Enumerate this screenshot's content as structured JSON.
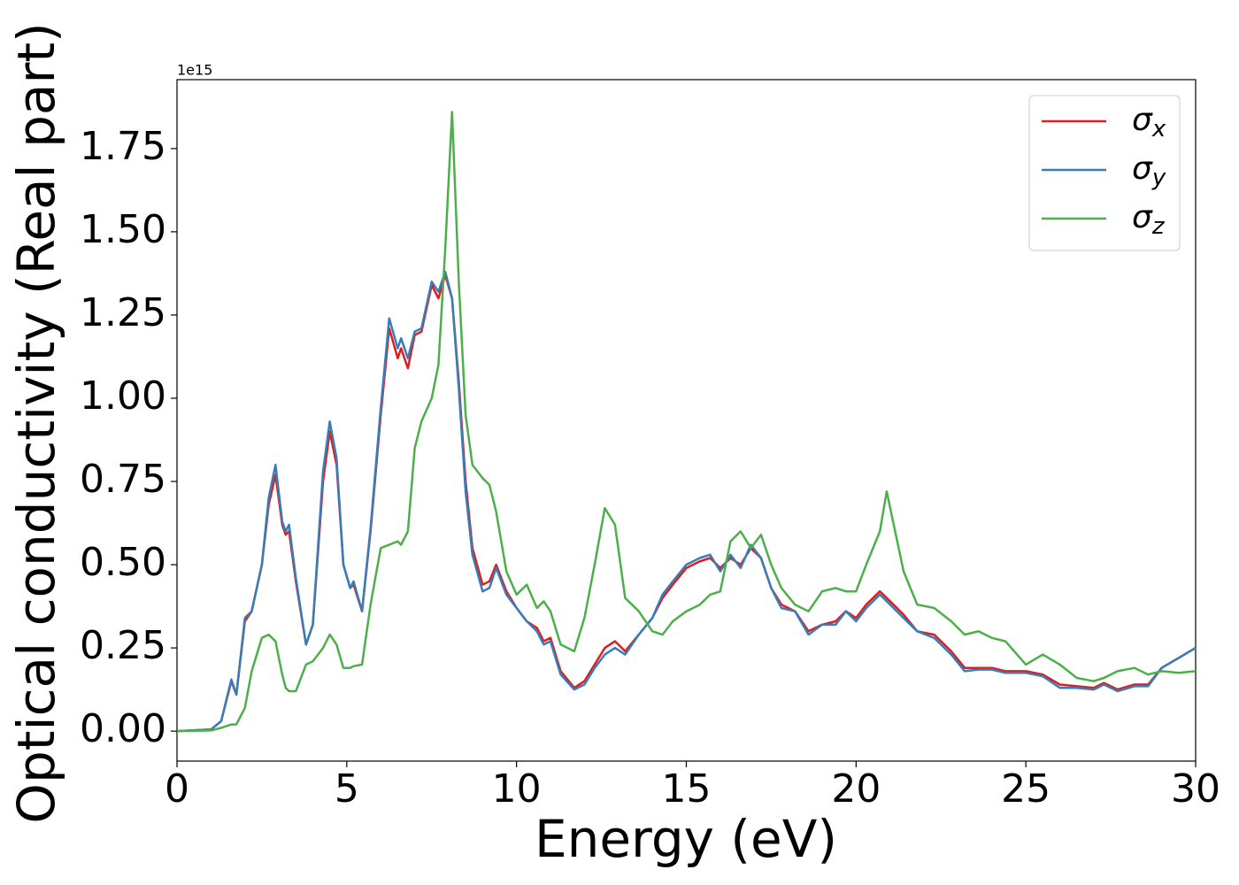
{
  "chart_data": {
    "type": "line",
    "xlabel": "Energy (eV)",
    "ylabel": "Optical conductivity (Real part)",
    "y_offset_label": "1e15",
    "x": [
      0,
      1,
      1.3,
      1.6,
      1.75,
      2,
      2.2,
      2.5,
      2.7,
      2.9,
      3.1,
      3.2,
      3.3,
      3.5,
      3.8,
      4,
      4.3,
      4.5,
      4.7,
      4.9,
      5.1,
      5.2,
      5.45,
      5.7,
      6,
      6.25,
      6.5,
      6.6,
      6.8,
      7,
      7.2,
      7.5,
      7.7,
      7.9,
      8.1,
      8.3,
      8.5,
      8.7,
      9,
      9.2,
      9.4,
      9.7,
      10,
      10.3,
      10.6,
      10.8,
      11,
      11.3,
      11.7,
      12,
      12.3,
      12.6,
      12.9,
      13.2,
      13.6,
      14,
      14.3,
      14.6,
      15,
      15.4,
      15.7,
      16,
      16.3,
      16.6,
      16.9,
      17.2,
      17.5,
      17.8,
      18.2,
      18.6,
      19,
      19.4,
      19.7,
      20,
      20.3,
      20.7,
      20.9,
      21.4,
      21.8,
      22.3,
      22.8,
      23.2,
      23.6,
      24,
      24.4,
      25,
      25.5,
      26,
      26.5,
      27,
      27.3,
      27.7,
      28.2,
      28.6,
      29,
      29.5,
      30
    ],
    "series": [
      {
        "name": "σx",
        "color": "#e41a1c",
        "values": [
          0,
          0.005,
          0.03,
          0.15,
          0.11,
          0.33,
          0.36,
          0.5,
          0.68,
          0.77,
          0.62,
          0.59,
          0.6,
          0.45,
          0.26,
          0.32,
          0.75,
          0.9,
          0.8,
          0.5,
          0.43,
          0.44,
          0.36,
          0.6,
          0.95,
          1.21,
          1.12,
          1.15,
          1.09,
          1.19,
          1.2,
          1.34,
          1.3,
          1.37,
          1.3,
          1.05,
          0.75,
          0.55,
          0.44,
          0.45,
          0.5,
          0.42,
          0.37,
          0.33,
          0.31,
          0.27,
          0.28,
          0.18,
          0.13,
          0.15,
          0.2,
          0.25,
          0.27,
          0.24,
          0.29,
          0.34,
          0.4,
          0.44,
          0.49,
          0.51,
          0.52,
          0.49,
          0.52,
          0.5,
          0.55,
          0.52,
          0.43,
          0.38,
          0.36,
          0.3,
          0.32,
          0.33,
          0.36,
          0.34,
          0.38,
          0.42,
          0.4,
          0.35,
          0.3,
          0.29,
          0.24,
          0.19,
          0.19,
          0.19,
          0.18,
          0.18,
          0.17,
          0.14,
          0.135,
          0.13,
          0.145,
          0.125,
          0.14,
          0.14,
          0.19,
          0.22,
          0.25
        ]
      },
      {
        "name": "σy",
        "color": "#377eb8",
        "values": [
          0,
          0.005,
          0.03,
          0.155,
          0.11,
          0.34,
          0.36,
          0.5,
          0.7,
          0.8,
          0.63,
          0.6,
          0.62,
          0.46,
          0.26,
          0.32,
          0.78,
          0.93,
          0.82,
          0.5,
          0.43,
          0.45,
          0.36,
          0.61,
          0.97,
          1.24,
          1.15,
          1.18,
          1.12,
          1.2,
          1.21,
          1.35,
          1.32,
          1.38,
          1.3,
          1.03,
          0.72,
          0.53,
          0.42,
          0.43,
          0.49,
          0.41,
          0.37,
          0.33,
          0.3,
          0.26,
          0.27,
          0.17,
          0.125,
          0.14,
          0.19,
          0.23,
          0.25,
          0.23,
          0.29,
          0.34,
          0.41,
          0.45,
          0.5,
          0.52,
          0.53,
          0.48,
          0.53,
          0.49,
          0.56,
          0.52,
          0.43,
          0.37,
          0.36,
          0.29,
          0.32,
          0.32,
          0.36,
          0.33,
          0.37,
          0.41,
          0.39,
          0.34,
          0.3,
          0.28,
          0.23,
          0.18,
          0.185,
          0.185,
          0.175,
          0.175,
          0.165,
          0.13,
          0.13,
          0.125,
          0.14,
          0.12,
          0.135,
          0.135,
          0.19,
          0.22,
          0.25
        ]
      },
      {
        "name": "σz",
        "color": "#4daf4a",
        "values": [
          0,
          0.002,
          0.01,
          0.02,
          0.02,
          0.07,
          0.18,
          0.28,
          0.29,
          0.27,
          0.17,
          0.13,
          0.12,
          0.12,
          0.2,
          0.21,
          0.25,
          0.29,
          0.26,
          0.19,
          0.19,
          0.195,
          0.2,
          0.38,
          0.55,
          0.56,
          0.57,
          0.56,
          0.6,
          0.85,
          0.93,
          1.0,
          1.1,
          1.45,
          1.86,
          1.35,
          0.95,
          0.8,
          0.76,
          0.74,
          0.66,
          0.48,
          0.41,
          0.44,
          0.37,
          0.39,
          0.36,
          0.26,
          0.24,
          0.34,
          0.5,
          0.67,
          0.62,
          0.4,
          0.36,
          0.3,
          0.29,
          0.33,
          0.36,
          0.38,
          0.41,
          0.42,
          0.57,
          0.6,
          0.55,
          0.59,
          0.5,
          0.43,
          0.38,
          0.36,
          0.42,
          0.43,
          0.42,
          0.42,
          0.5,
          0.6,
          0.72,
          0.48,
          0.38,
          0.37,
          0.33,
          0.29,
          0.3,
          0.28,
          0.27,
          0.2,
          0.23,
          0.2,
          0.16,
          0.15,
          0.16,
          0.18,
          0.19,
          0.17,
          0.18,
          0.175,
          0.18
        ]
      }
    ],
    "xlim": [
      0,
      30
    ],
    "xticks": [
      0,
      5,
      10,
      15,
      20,
      25,
      30
    ],
    "ylim": [
      -0.09,
      1.957
    ],
    "yticks": [
      {
        "value": 0,
        "label": "0.00"
      },
      0.25,
      {
        "value": 0.5,
        "label": "0.50"
      },
      0.75,
      {
        "value": 1,
        "label": "1.00"
      },
      1.25,
      {
        "value": 1.5,
        "label": "1.50"
      },
      1.75
    ],
    "grid": false,
    "legend": "upper right"
  }
}
